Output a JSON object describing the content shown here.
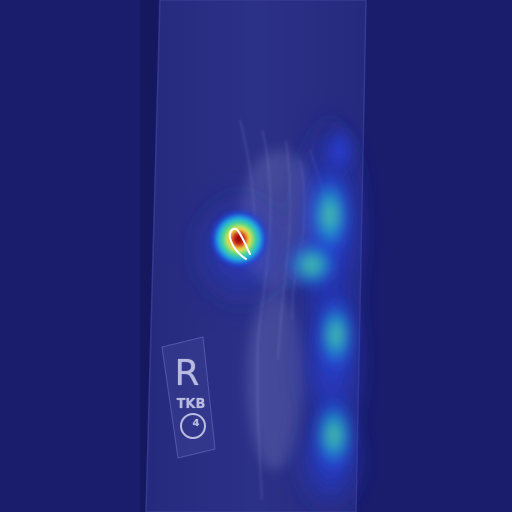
{
  "image": {
    "kind": "radiograph-with-heatmap-overlay",
    "background_color": "#1a1c6c",
    "film_color": "#2a2f84",
    "heatmap_palette": [
      "#1a1c6c",
      "#1f3fd6",
      "#19c0d0",
      "#4bd98a",
      "#f3e14a",
      "#e0301a",
      "#7a0000"
    ]
  },
  "marker": {
    "side_letter": "R",
    "label": "TKB",
    "number": "4"
  }
}
